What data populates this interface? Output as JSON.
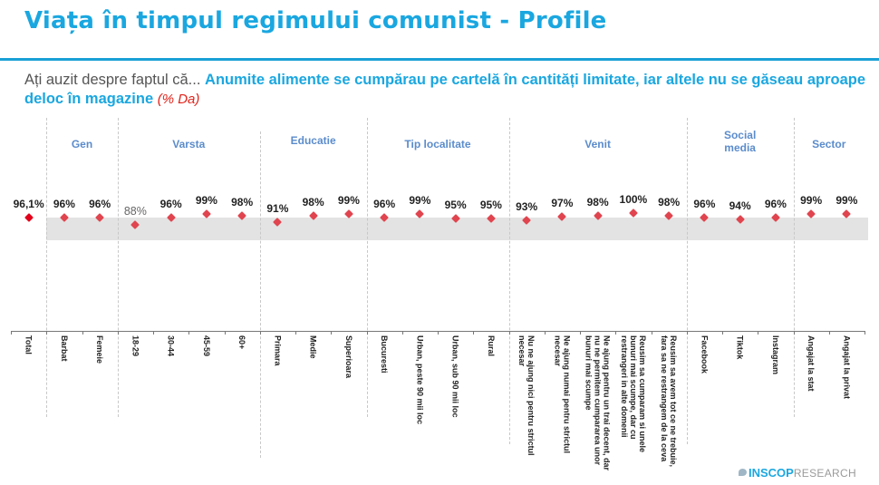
{
  "header": {
    "title": "Viața în timpul regimului comunist - Profile",
    "question_lead": "Ați auzit despre faptul că... ",
    "question_main": "Anumite alimente se cumpărau pe cartelă în cantități limitate, iar altele nu se găseau aproape deloc în magazine ",
    "question_unit": "(% Da)"
  },
  "colors": {
    "accent": "#1aa7e0",
    "group_label": "#5b8ccc",
    "point": "#e0454f",
    "total_point": "#e2001a",
    "band": "#e3e3e3"
  },
  "logo": {
    "brand": "INSCOP",
    "sub": "RESEARCH"
  },
  "chart_data": {
    "type": "scatter",
    "title": "Viața în timpul regimului comunist - Profile",
    "subtitle": "Ați auzit despre faptul că... Anumite alimente se cumpărau pe cartelă în cantități limitate, iar altele nu se găseau aproape deloc în magazine (% Da)",
    "xlabel": "",
    "ylabel": "% Da",
    "ylim": [
      0,
      100
    ],
    "grid": false,
    "legend": "none",
    "groups": [
      {
        "name": "",
        "categories": [
          "Total"
        ]
      },
      {
        "name": "Gen",
        "categories": [
          "Barbat",
          "Femeie"
        ]
      },
      {
        "name": "Varsta",
        "categories": [
          "18-29",
          "30-44",
          "45-59",
          "60+"
        ]
      },
      {
        "name": "Educatie",
        "categories": [
          "Primara",
          "Medie",
          "Superioara"
        ]
      },
      {
        "name": "Tip localitate",
        "categories": [
          "Bucuresti",
          "Urban, peste 90 mii loc",
          "Urban, sub 90 mii loc",
          "Rural"
        ]
      },
      {
        "name": "Venit",
        "categories": [
          "Nu ne ajung nici pentru strictul necesar",
          "Ne ajung numai pentru strictul necesar",
          "Ne ajung pentru un trai decent, dar nu ne permitem cumpararea unor bunuri mai scumpe",
          "Reusim sa cumparam si unele bunuri mai scumpe, dar cu restrangeri in alte domenii",
          "Reusim sa avem tot ce ne trebuie, fara sa ne restrangem de la ceva"
        ]
      },
      {
        "name": "Social media",
        "categories": [
          "Facebook",
          "Tiktok",
          "Instagram"
        ]
      },
      {
        "name": "Sector",
        "categories": [
          "Angajat la stat",
          "Angajat la privat"
        ]
      }
    ],
    "categories": [
      "Total",
      "Barbat",
      "Femeie",
      "18-29",
      "30-44",
      "45-59",
      "60+",
      "Primara",
      "Medie",
      "Superioara",
      "Bucuresti",
      "Urban, peste 90 mii loc",
      "Urban, sub 90 mii loc",
      "Rural",
      "Nu ne ajung nici pentru strictul necesar",
      "Ne ajung numai pentru strictul necesar",
      "Ne ajung pentru un trai decent, dar nu ne permitem cumpararea unor bunuri mai scumpe",
      "Reusim sa cumparam si unele bunuri mai scumpe, dar cu restrangeri in alte domenii",
      "Reusim sa avem tot ce ne trebuie, fara sa ne restrangem de la ceva",
      "Facebook",
      "Tiktok",
      "Instagram",
      "Angajat la stat",
      "Angajat la privat"
    ],
    "values": [
      96.1,
      96,
      96,
      88,
      96,
      99,
      98,
      91,
      98,
      99,
      96,
      99,
      95,
      95,
      93,
      97,
      98,
      100,
      98,
      96,
      94,
      96,
      99,
      99
    ],
    "value_labels": [
      "96,1%",
      "96%",
      "96%",
      "88%",
      "96%",
      "99%",
      "98%",
      "91%",
      "98%",
      "99%",
      "96%",
      "99%",
      "95%",
      "95%",
      "93%",
      "97%",
      "98%",
      "100%",
      "98%",
      "96%",
      "94%",
      "96%",
      "99%",
      "99%"
    ],
    "annotations": [
      "Shaded band marks the range around the total (approx. 91%–100%)"
    ]
  },
  "axis_labels": [
    "Total",
    "Barbat",
    "Femeie",
    "18-29",
    "30-44",
    "45-59",
    "60+",
    "Primara",
    "Medie",
    "Superioara",
    "Bucuresti",
    "Urban, peste 90 mii loc",
    "Urban, sub 90 mii loc",
    "Rural",
    "Nu ne ajung nici pentru strictul\nnecesar",
    "Ne ajung numai pentru strictul\nnecesar",
    "Ne ajung pentru un trai decent, dar\nnu ne permitem cumpararea unor\nbunuri mai scumpe",
    "Reusim sa cumparam si unele\nbunuri mai scumpe, dar cu\nrestrangeri in alte domenii",
    "Reusim sa avem tot ce ne trebuie,\nfara sa ne restrangem de la ceva",
    "Facebook",
    "Tiktok",
    "Instagram",
    "Angajat la stat",
    "Angajat la privat"
  ]
}
